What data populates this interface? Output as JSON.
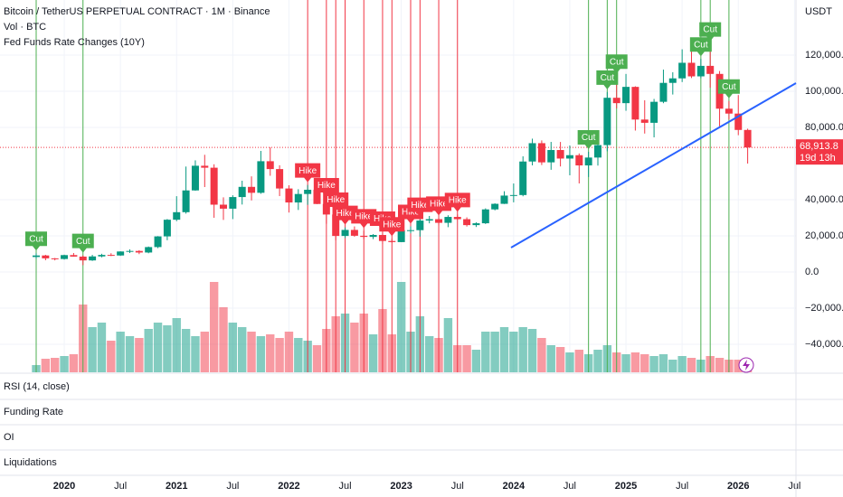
{
  "chart_data": {
    "type": "candlestick",
    "title": "Bitcoin / TetherUS PERPETUAL CONTRACT · 1M · Binance",
    "volume_label": "Vol · BTC",
    "indicator_label": "Fed Funds Rate Changes (10Y)",
    "currency": "USDT",
    "panes": [
      "RSI (14, close)",
      "Funding Rate",
      "OI",
      "Liquidations"
    ],
    "x": [
      "2019-10",
      "2019-11",
      "2019-12",
      "2020-01",
      "2020-02",
      "2020-03",
      "2020-04",
      "2020-05",
      "2020-06",
      "2020-07",
      "2020-08",
      "2020-09",
      "2020-10",
      "2020-11",
      "2020-12",
      "2021-01",
      "2021-02",
      "2021-03",
      "2021-04",
      "2021-05",
      "2021-06",
      "2021-07",
      "2021-08",
      "2021-09",
      "2021-10",
      "2021-11",
      "2021-12",
      "2022-01",
      "2022-02",
      "2022-03",
      "2022-04",
      "2022-05",
      "2022-06",
      "2022-07",
      "2022-08",
      "2022-09",
      "2022-10",
      "2022-11",
      "2022-12",
      "2023-01",
      "2023-02",
      "2023-03",
      "2023-04",
      "2023-05",
      "2023-06",
      "2023-07",
      "2023-08",
      "2023-09",
      "2023-10",
      "2023-11",
      "2023-12",
      "2024-01",
      "2024-02",
      "2024-03",
      "2024-04",
      "2024-05",
      "2024-06",
      "2024-07",
      "2024-08",
      "2024-09",
      "2024-10",
      "2024-11",
      "2024-12",
      "2025-01",
      "2025-02",
      "2025-03",
      "2025-04",
      "2025-05",
      "2025-06",
      "2025-07",
      "2025-08",
      "2025-09",
      "2025-10",
      "2025-11",
      "2025-12",
      "2026-01",
      "2026-02"
    ],
    "open": [
      8300,
      9150,
      7550,
      7190,
      9350,
      8520,
      6410,
      8620,
      9450,
      9140,
      11350,
      11650,
      10780,
      13790,
      19700,
      28920,
      33090,
      45140,
      58790,
      57700,
      37250,
      35040,
      41460,
      47100,
      43820,
      61300,
      56950,
      46200,
      38470,
      43160,
      45510,
      37630,
      31800,
      19940,
      23290,
      20050,
      19420,
      20490,
      17160,
      16540,
      23130,
      23140,
      28460,
      29230,
      27210,
      30470,
      29230,
      25940,
      26960,
      34640,
      37720,
      42280,
      42580,
      61130,
      71280,
      60670,
      67490,
      62770,
      64630,
      58970,
      63330,
      70220,
      96400,
      93430,
      102430,
      84350,
      82550,
      94170,
      104640,
      107140,
      115760,
      108250,
      114050,
      109600,
      90360,
      87650,
      78600
    ],
    "high": [
      10370,
      9500,
      7750,
      9580,
      10500,
      9190,
      9470,
      10070,
      10380,
      11440,
      12470,
      12070,
      14100,
      19860,
      29300,
      41950,
      58350,
      61780,
      64850,
      59600,
      41330,
      42450,
      50500,
      52920,
      67000,
      69000,
      59050,
      47990,
      45800,
      48190,
      47440,
      40000,
      31980,
      24670,
      25210,
      22800,
      20990,
      21480,
      18390,
      23960,
      25250,
      29190,
      31000,
      29820,
      31390,
      31800,
      30230,
      27480,
      35200,
      38000,
      44700,
      48970,
      64000,
      73780,
      72800,
      71980,
      71950,
      70000,
      65600,
      66500,
      73620,
      99590,
      108350,
      109590,
      102750,
      95000,
      95760,
      111980,
      110530,
      123220,
      124470,
      117900,
      126200,
      111200,
      94600,
      97900,
      79300
    ],
    "low": [
      7300,
      6500,
      6430,
      6850,
      8450,
      3780,
      6150,
      8100,
      8830,
      8900,
      10520,
      9880,
      10370,
      13200,
      17570,
      28130,
      32300,
      44950,
      47000,
      30000,
      28800,
      29280,
      37330,
      39600,
      43280,
      53250,
      42000,
      32900,
      34320,
      37150,
      37580,
      26700,
      17600,
      18780,
      19520,
      18120,
      18190,
      15480,
      16250,
      16500,
      21350,
      19550,
      26940,
      25810,
      24800,
      28860,
      25160,
      24900,
      26560,
      34100,
      37620,
      38550,
      41880,
      59000,
      59190,
      56550,
      58400,
      53500,
      49000,
      52550,
      58900,
      66800,
      90500,
      89200,
      78260,
      76600,
      74500,
      93400,
      98200,
      105100,
      107300,
      107270,
      102000,
      80600,
      84400,
      75700,
      60000
    ],
    "close": [
      9150,
      7550,
      7190,
      9350,
      8520,
      6410,
      8620,
      9450,
      9140,
      11350,
      11650,
      10780,
      13790,
      19700,
      28920,
      33090,
      45140,
      58790,
      57700,
      37250,
      35040,
      41460,
      47100,
      43820,
      61300,
      56950,
      46200,
      38470,
      43160,
      45510,
      37630,
      31800,
      19940,
      23290,
      20050,
      19420,
      20490,
      17160,
      16540,
      23130,
      23140,
      28460,
      29230,
      27210,
      30470,
      29230,
      25940,
      26960,
      34640,
      37720,
      42280,
      42580,
      61130,
      71280,
      60670,
      67490,
      62770,
      64630,
      58970,
      63330,
      70220,
      96400,
      93430,
      102430,
      84350,
      82550,
      94170,
      104640,
      107140,
      115760,
      108250,
      114050,
      109600,
      90360,
      87650,
      78600,
      68913.8
    ],
    "volume": [
      8,
      15,
      16,
      18,
      20,
      75,
      50,
      55,
      35,
      45,
      40,
      38,
      48,
      55,
      52,
      60,
      48,
      40,
      45,
      100,
      72,
      55,
      50,
      45,
      40,
      42,
      38,
      45,
      38,
      35,
      30,
      48,
      62,
      65,
      55,
      65,
      42,
      70,
      42,
      100,
      45,
      62,
      40,
      38,
      60,
      30,
      30,
      25,
      45,
      45,
      50,
      45,
      50,
      48,
      38,
      30,
      28,
      22,
      25,
      20,
      25,
      30,
      22,
      20,
      22,
      20,
      18,
      20,
      14,
      18,
      16,
      14,
      18,
      16,
      14,
      14,
      12
    ],
    "up_color": "#089981",
    "down_color": "#f23645",
    "events": [
      {
        "x": "2019-10",
        "label": "Cut"
      },
      {
        "x": "2020-03",
        "label": "Cut"
      },
      {
        "x": "2022-03",
        "label": "Hike"
      },
      {
        "x": "2022-05",
        "label": "Hike"
      },
      {
        "x": "2022-06",
        "label": "Hike"
      },
      {
        "x": "2022-07",
        "label": "Hike"
      },
      {
        "x": "2022-09",
        "label": "Hike"
      },
      {
        "x": "2022-11",
        "label": "Hike"
      },
      {
        "x": "2022-12",
        "label": "Hike"
      },
      {
        "x": "2023-02",
        "label": "Hike"
      },
      {
        "x": "2023-03",
        "label": "Hike"
      },
      {
        "x": "2023-05",
        "label": "Hike"
      },
      {
        "x": "2023-07",
        "label": "Hike"
      },
      {
        "x": "2024-09",
        "label": "Cut"
      },
      {
        "x": "2024-11",
        "label": "Cut"
      },
      {
        "x": "2024-12",
        "label": "Cut"
      },
      {
        "x": "2025-09",
        "label": "Cut"
      },
      {
        "x": "2025-10",
        "label": "Cut"
      },
      {
        "x": "2025-12",
        "label": "Cut"
      }
    ],
    "cut_color": "#4caf50",
    "hike_color": "#f23645",
    "last_price": {
      "value": 68913.8,
      "label": "68,913.8"
    },
    "countdown": "19d 13h",
    "ylim": [
      -55500,
      150500
    ],
    "yticks": [
      {
        "value": 120000,
        "label": "120,000.0"
      },
      {
        "value": 100000,
        "label": "100,000.0"
      },
      {
        "value": 80000,
        "label": "80,000.0"
      },
      {
        "value": 40000,
        "label": "40,000.0"
      },
      {
        "value": 20000,
        "label": "20,000.0"
      },
      {
        "value": 0,
        "label": "0.0"
      },
      {
        "value": -20000,
        "label": "−20,000.0"
      },
      {
        "value": -40000,
        "label": "−40,000.0"
      }
    ],
    "xticks": [
      {
        "value": "2020-01",
        "label": "2020"
      },
      {
        "value": "2020-07",
        "label": "Jul"
      },
      {
        "value": "2021-01",
        "label": "2021"
      },
      {
        "value": "2021-07",
        "label": "Jul"
      },
      {
        "value": "2022-01",
        "label": "2022"
      },
      {
        "value": "2022-07",
        "label": "Jul"
      },
      {
        "value": "2023-01",
        "label": "2023"
      },
      {
        "value": "2023-07",
        "label": "Jul"
      },
      {
        "value": "2024-01",
        "label": "2024"
      },
      {
        "value": "2024-07",
        "label": "Jul"
      },
      {
        "value": "2025-01",
        "label": "2025"
      },
      {
        "value": "2025-07",
        "label": "Jul"
      },
      {
        "value": "2026-01",
        "label": "2026"
      },
      {
        "value": "2026-07",
        "label": "Jul"
      }
    ],
    "grid": true
  }
}
